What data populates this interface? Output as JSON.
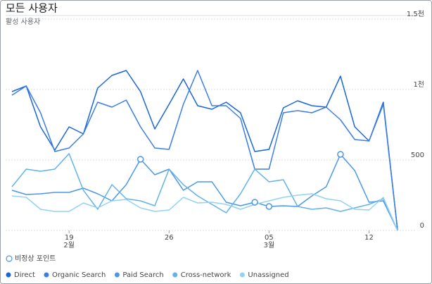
{
  "chart_data": {
    "type": "line",
    "title": "모든 사용자",
    "subtitle": "활성 사용자",
    "categories": [
      null,
      null,
      null,
      null,
      "19",
      null,
      null,
      null,
      null,
      null,
      null,
      "26",
      null,
      null,
      null,
      null,
      null,
      null,
      "05",
      null,
      null,
      null,
      null,
      null,
      null,
      "12",
      null,
      null
    ],
    "category_months": [
      null,
      null,
      null,
      null,
      "2월",
      null,
      null,
      null,
      null,
      null,
      null,
      null,
      null,
      null,
      null,
      null,
      null,
      null,
      "3월",
      null,
      null,
      null,
      null,
      null,
      null,
      null,
      null,
      null
    ],
    "ylim": [
      0,
      1500
    ],
    "yticks": [
      0,
      500,
      {
        "value": 1000,
        "label": "1천"
      },
      {
        "value": 1500,
        "label": "1.5천"
      }
    ],
    "grid": true,
    "anomaly_label": "비정상 포인트",
    "series": [
      {
        "name": "Direct",
        "color": "#1a66d8",
        "values": [
          985,
          1025,
          735,
          570,
          735,
          685,
          1010,
          1100,
          1135,
          985,
          720,
          895,
          1075,
          885,
          860,
          910,
          835,
          560,
          575,
          870,
          920,
          885,
          875,
          1095,
          735,
          635,
          910,
          0
        ]
      },
      {
        "name": "Organic Search",
        "color": "#3b7de6",
        "values": [
          960,
          1025,
          835,
          560,
          585,
          685,
          910,
          875,
          925,
          735,
          585,
          575,
          895,
          1135,
          885,
          885,
          795,
          435,
          435,
          835,
          850,
          835,
          875,
          785,
          645,
          635,
          895,
          0
        ]
      },
      {
        "name": "Paid Search",
        "color": "#4a97ea",
        "anomalies": [
          9,
          17,
          18,
          23
        ],
        "values": [
          285,
          255,
          260,
          270,
          270,
          300,
          260,
          210,
          325,
          505,
          395,
          435,
          285,
          345,
          345,
          200,
          175,
          200,
          170,
          175,
          170,
          245,
          310,
          540,
          425,
          200,
          210,
          0
        ]
      },
      {
        "name": "Cross-network",
        "color": "#62b2e8",
        "values": [
          310,
          435,
          420,
          435,
          545,
          285,
          150,
          325,
          225,
          210,
          175,
          435,
          325,
          245,
          185,
          125,
          260,
          435,
          345,
          360,
          170,
          150,
          160,
          135,
          160,
          185,
          225,
          0
        ]
      },
      {
        "name": "Unassigned",
        "color": "#92d2f2",
        "values": [
          245,
          235,
          150,
          135,
          135,
          195,
          160,
          210,
          220,
          160,
          135,
          145,
          235,
          195,
          200,
          185,
          150,
          185,
          210,
          235,
          250,
          260,
          225,
          210,
          150,
          145,
          235,
          0
        ]
      }
    ]
  }
}
